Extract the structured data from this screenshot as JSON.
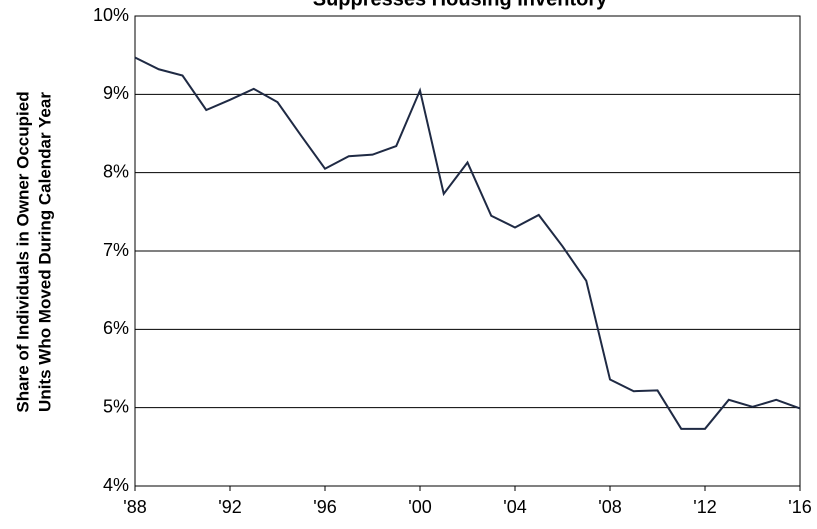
{
  "chart_data": {
    "type": "line",
    "title": "Suppresses Housing Inventory",
    "y_label": [
      "Share of Individuals in Owner Occupied",
      "Units Who Moved During Calendar Year"
    ],
    "x": [
      1988,
      1989,
      1990,
      1991,
      1992,
      1993,
      1994,
      1995,
      1996,
      1997,
      1998,
      1999,
      2000,
      2001,
      2002,
      2003,
      2004,
      2005,
      2006,
      2007,
      2008,
      2009,
      2010,
      2011,
      2012,
      2013,
      2014,
      2015,
      2016
    ],
    "series": [
      {
        "color": "#1f2a44",
        "values": [
          9.47,
          9.32,
          9.24,
          8.8,
          8.93,
          9.07,
          8.9,
          8.47,
          8.05,
          8.21,
          8.23,
          8.34,
          9.05,
          7.73,
          8.13,
          7.45,
          7.3,
          7.46,
          7.06,
          6.62,
          5.36,
          5.21,
          5.22,
          4.73,
          4.73,
          5.1,
          5.01,
          5.1,
          4.99
        ]
      }
    ],
    "xlim": [
      1988,
      2016
    ],
    "xticks": [
      {
        "value": 1988,
        "label": "'88"
      },
      {
        "value": 1992,
        "label": "'92"
      },
      {
        "value": 1996,
        "label": "'96"
      },
      {
        "value": 2000,
        "label": "'00"
      },
      {
        "value": 2004,
        "label": "'04"
      },
      {
        "value": 2008,
        "label": "'08"
      },
      {
        "value": 2012,
        "label": "'12"
      },
      {
        "value": 2016,
        "label": "'16"
      }
    ],
    "ylim": [
      4,
      10
    ],
    "yticks": [
      {
        "value": 4,
        "label": "4%"
      },
      {
        "value": 5,
        "label": "5%"
      },
      {
        "value": 6,
        "label": "6%"
      },
      {
        "value": 7,
        "label": "7%"
      },
      {
        "value": 8,
        "label": "8%"
      },
      {
        "value": 9,
        "label": "9%"
      },
      {
        "value": 10,
        "label": "10%"
      }
    ],
    "grid": true
  }
}
